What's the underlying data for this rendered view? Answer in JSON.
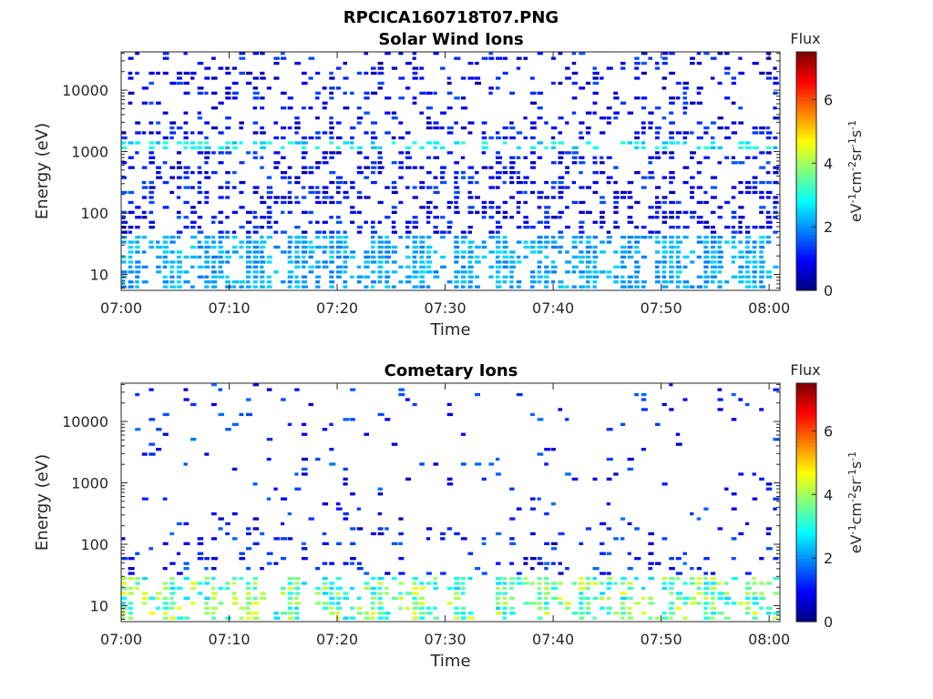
{
  "figure": {
    "title": "RPCICA160718T07.PNG"
  },
  "colorbar": {
    "title": "Flux",
    "label_html": "eV<tspan baseline-shift=\"super\" font-size=\"11\">-1</tspan>cm<tspan baseline-shift=\"super\" font-size=\"11\">-2</tspan>sr<tspan baseline-shift=\"super\" font-size=\"11\">-1</tspan>s<tspan baseline-shift=\"super\" font-size=\"11\">-1</tspan>",
    "ticks": [
      "0",
      "2",
      "4",
      "6"
    ],
    "range": [
      0,
      7.5
    ],
    "colormap": "jet"
  },
  "chart_data": [
    {
      "type": "heatmap",
      "title": "Solar Wind Ions",
      "xlabel": "Time",
      "ylabel": "Energy (eV)",
      "xticks": [
        "07:00",
        "07:10",
        "07:20",
        "07:30",
        "07:40",
        "07:50",
        "08:00"
      ],
      "yticks": [
        "10",
        "100",
        "1000",
        "10000"
      ],
      "xlim": [
        "07:00",
        "08:01"
      ],
      "ylim": [
        5.5,
        42000
      ],
      "yscale": "log",
      "grid": false,
      "intensity": {
        "low_energy_band_below_eV": 40,
        "low_energy_band_flux": [
          1.8,
          2.6
        ],
        "sweep_line_eV": 1200,
        "sweep_line_flux": [
          2.2,
          3.2
        ],
        "background_flux": [
          0.3,
          1.6
        ]
      }
    },
    {
      "type": "heatmap",
      "title": "Cometary Ions",
      "xlabel": "Time",
      "ylabel": "Energy (eV)",
      "xticks": [
        "07:00",
        "07:10",
        "07:20",
        "07:30",
        "07:40",
        "07:50",
        "08:00"
      ],
      "yticks": [
        "10",
        "100",
        "1000",
        "10000"
      ],
      "xlim": [
        "07:00",
        "08:01"
      ],
      "ylim": [
        5.5,
        42000
      ],
      "yscale": "log",
      "grid": false,
      "intensity": {
        "low_energy_band_below_eV": 30,
        "low_energy_band_flux": [
          2.5,
          4.6
        ],
        "background_flux": [
          0.4,
          1.8
        ]
      }
    }
  ]
}
